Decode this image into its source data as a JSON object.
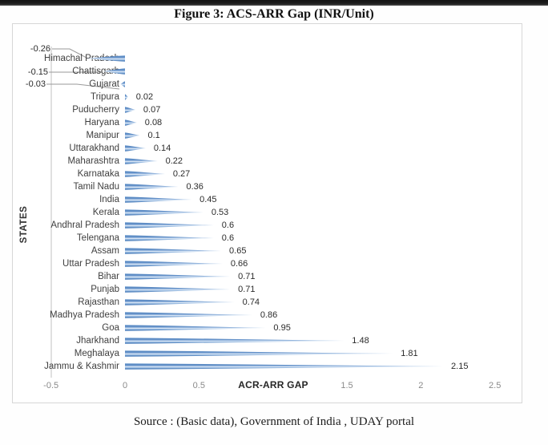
{
  "figure": {
    "title": "Figure 3: ACS-ARR Gap (INR/Unit)",
    "source": "Source : (Basic data), Government of India , UDAY portal"
  },
  "chart_data": {
    "type": "bar",
    "orientation": "horizontal",
    "title": "Figure 3: ACS-ARR Gap (INR/Unit)",
    "xlabel": "ACR-ARR GAP",
    "ylabel": "STATES",
    "xlim": [
      -0.5,
      2.5
    ],
    "xticks": [
      "-0.5",
      "0",
      "0.5",
      "1",
      "1.5",
      "2",
      "2.5"
    ],
    "xtick_values": [
      -0.5,
      0,
      0.5,
      1,
      1.5,
      2,
      2.5
    ],
    "grid": false,
    "legend": false,
    "bar_color": "#4f81bd",
    "data_labels": true,
    "categories": [
      "Himachal Pradesh",
      "Chattisgarh",
      "Gujarat",
      "Tripura",
      "Puducherry",
      "Haryana",
      "Manipur",
      "Uttarakhand",
      "Maharashtra",
      "Karnataka",
      "Tamil Nadu",
      "India",
      "Kerala",
      "Andhral Pradesh",
      "Telengana",
      "Assam",
      "Uttar Pradesh",
      "Bihar",
      "Punjab",
      "Rajasthan",
      "Madhya Pradesh",
      "Goa",
      "Jharkhand",
      "Meghalaya",
      "Jammu & Kashmir"
    ],
    "values": [
      -0.26,
      -0.15,
      -0.03,
      0.02,
      0.07,
      0.08,
      0.1,
      0.14,
      0.22,
      0.27,
      0.36,
      0.45,
      0.53,
      0.6,
      0.6,
      0.65,
      0.66,
      0.71,
      0.71,
      0.74,
      0.86,
      0.95,
      1.48,
      1.81,
      2.15
    ],
    "value_labels": [
      "-0.26",
      "-0.15",
      "-0.03",
      "0.02",
      "0.07",
      "0.08",
      "0.1",
      "0.14",
      "0.22",
      "0.27",
      "0.36",
      "0.45",
      "0.53",
      "0.6",
      "0.6",
      "0.65",
      "0.66",
      "0.71",
      "0.71",
      "0.74",
      "0.86",
      "0.95",
      "1.48",
      "1.81",
      "2.15"
    ]
  }
}
